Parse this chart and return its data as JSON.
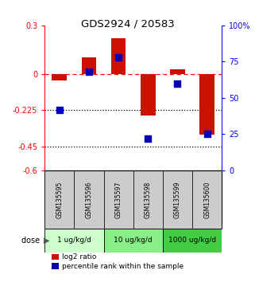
{
  "title": "GDS2924 / 20583",
  "samples": [
    "GSM135595",
    "GSM135596",
    "GSM135597",
    "GSM135598",
    "GSM135599",
    "GSM135600"
  ],
  "log2_ratio": [
    -0.04,
    0.1,
    0.22,
    -0.26,
    0.03,
    -0.38
  ],
  "percentile_rank": [
    42,
    68,
    78,
    22,
    60,
    25
  ],
  "ylim_left": [
    -0.6,
    0.3
  ],
  "ylim_right": [
    0,
    100
  ],
  "yticks_left": [
    0.3,
    0.0,
    -0.225,
    -0.45,
    -0.6
  ],
  "ytick_labels_left": [
    "0.3",
    "0",
    "-0.225",
    "-0.45",
    "-0.6"
  ],
  "yticks_right": [
    100,
    75,
    50,
    25,
    0
  ],
  "ytick_labels_right": [
    "100%",
    "75",
    "50",
    "25",
    "0"
  ],
  "bar_color": "#cc1100",
  "dot_color": "#0000bb",
  "bar_width": 0.5,
  "dot_size": 40,
  "sample_box_color": "#cccccc",
  "dose_colors": [
    "#ccffcc",
    "#88ee88",
    "#44cc44"
  ],
  "dose_labels": [
    "1 ug/kg/d",
    "10 ug/kg/d",
    "1000 ug/kg/d"
  ],
  "dose_ranges": [
    [
      0,
      2
    ],
    [
      2,
      4
    ],
    [
      4,
      6
    ]
  ]
}
